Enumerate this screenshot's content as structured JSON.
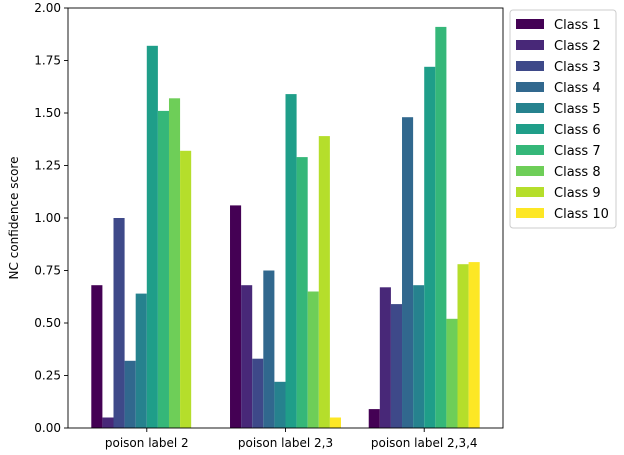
{
  "chart_data": {
    "type": "bar",
    "title": "",
    "xlabel": "",
    "ylabel": "NC confidence score",
    "ylim": [
      0,
      2.0
    ],
    "yticks": [
      "0.00",
      "0.25",
      "0.50",
      "0.75",
      "1.00",
      "1.25",
      "1.50",
      "1.75",
      "2.00"
    ],
    "grid": false,
    "legend_position": "outside-top-right",
    "categories": [
      "poison label 2",
      "poison label 2,3",
      "poison label 2,3,4"
    ],
    "series": [
      {
        "name": "Class 1",
        "color": "#440154",
        "values": [
          0.68,
          1.06,
          0.09
        ]
      },
      {
        "name": "Class 2",
        "color": "#482878",
        "values": [
          0.05,
          0.68,
          0.67
        ]
      },
      {
        "name": "Class 3",
        "color": "#3e4989",
        "values": [
          1.0,
          0.33,
          0.59
        ]
      },
      {
        "name": "Class 4",
        "color": "#31688e",
        "values": [
          0.32,
          0.75,
          1.48
        ]
      },
      {
        "name": "Class 5",
        "color": "#26828e",
        "values": [
          0.64,
          0.22,
          0.68
        ]
      },
      {
        "name": "Class 6",
        "color": "#1f9e89",
        "values": [
          1.82,
          1.59,
          1.72
        ]
      },
      {
        "name": "Class 7",
        "color": "#35b779",
        "values": [
          1.51,
          1.29,
          1.91
        ]
      },
      {
        "name": "Class 8",
        "color": "#6ece58",
        "values": [
          1.57,
          0.65,
          0.52
        ]
      },
      {
        "name": "Class 9",
        "color": "#b5de2b",
        "values": [
          1.32,
          1.39,
          0.78
        ]
      },
      {
        "name": "Class 10",
        "color": "#fde725",
        "values": [
          0.0,
          0.05,
          0.79
        ]
      }
    ]
  }
}
